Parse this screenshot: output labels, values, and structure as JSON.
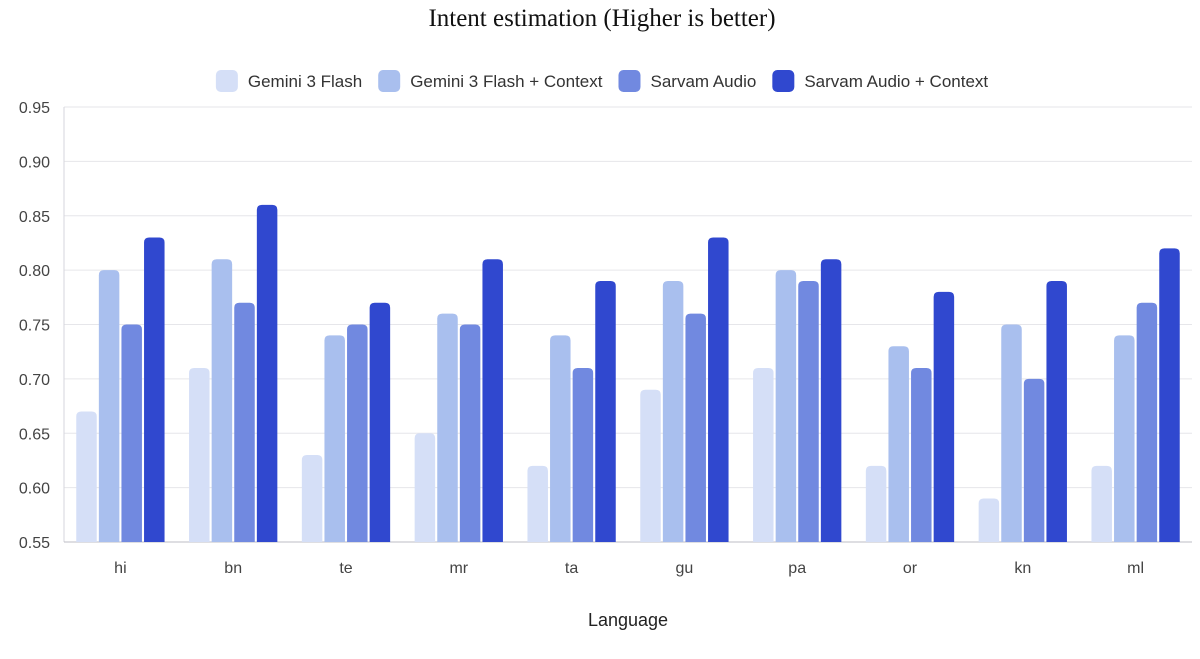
{
  "chart_data": {
    "type": "bar",
    "title": "Intent estimation (Higher is better)",
    "xlabel": "Language",
    "ylabel": "",
    "ylim": [
      0.55,
      0.95
    ],
    "yticks": [
      "0.55",
      "0.60",
      "0.65",
      "0.70",
      "0.75",
      "0.80",
      "0.85",
      "0.90",
      "0.95"
    ],
    "grid": true,
    "legend_position": "top",
    "categories": [
      "hi",
      "bn",
      "te",
      "mr",
      "ta",
      "gu",
      "pa",
      "or",
      "kn",
      "ml"
    ],
    "series": [
      {
        "name": "Gemini 3 Flash",
        "color": "#d5dff7",
        "values": [
          0.67,
          0.71,
          0.63,
          0.65,
          0.62,
          0.69,
          0.71,
          0.62,
          0.59,
          0.62
        ]
      },
      {
        "name": "Gemini 3 Flash + Context",
        "color": "#a9bfee",
        "values": [
          0.8,
          0.81,
          0.74,
          0.76,
          0.74,
          0.79,
          0.8,
          0.73,
          0.75,
          0.74
        ]
      },
      {
        "name": "Sarvam Audio",
        "color": "#7189e0",
        "values": [
          0.75,
          0.77,
          0.75,
          0.75,
          0.71,
          0.76,
          0.79,
          0.71,
          0.7,
          0.77
        ]
      },
      {
        "name": "Sarvam Audio + Context",
        "color": "#3048cf",
        "values": [
          0.83,
          0.86,
          0.77,
          0.81,
          0.79,
          0.83,
          0.81,
          0.78,
          0.79,
          0.82
        ]
      }
    ]
  }
}
